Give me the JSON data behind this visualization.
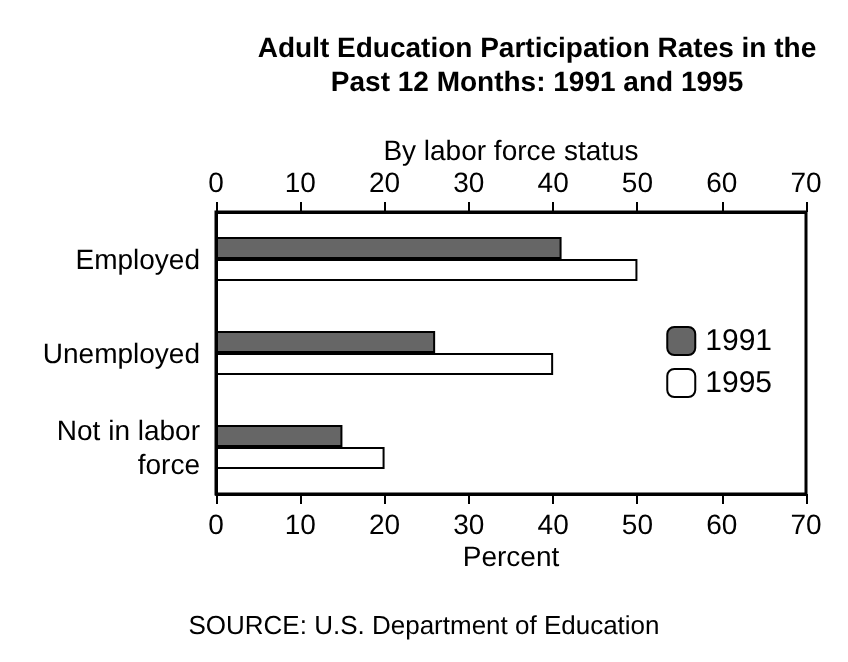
{
  "chart_data": {
    "type": "bar",
    "orientation": "horizontal",
    "title": "Adult Education Participation Rates in the\nPast 12 Months: 1991 and 1995",
    "x2label": "By labor force status",
    "xlabel": "Percent",
    "categories": [
      "Employed",
      "Unemployed",
      "Not in labor\nforce"
    ],
    "series": [
      {
        "name": "1991",
        "color": "#666666",
        "values": [
          41,
          26,
          15
        ]
      },
      {
        "name": "1995",
        "color": "#ffffff",
        "values": [
          50,
          40,
          20
        ]
      }
    ],
    "xlim": [
      0,
      70
    ],
    "xticks": [
      0,
      10,
      20,
      30,
      40,
      50,
      60,
      70
    ],
    "x2lim": [
      0,
      70
    ],
    "x2ticks": [
      0,
      10,
      20,
      30,
      40,
      50,
      60,
      70
    ],
    "legend": "right",
    "grid": false,
    "annotations": [
      "SOURCE: U.S. Department of Education"
    ]
  }
}
